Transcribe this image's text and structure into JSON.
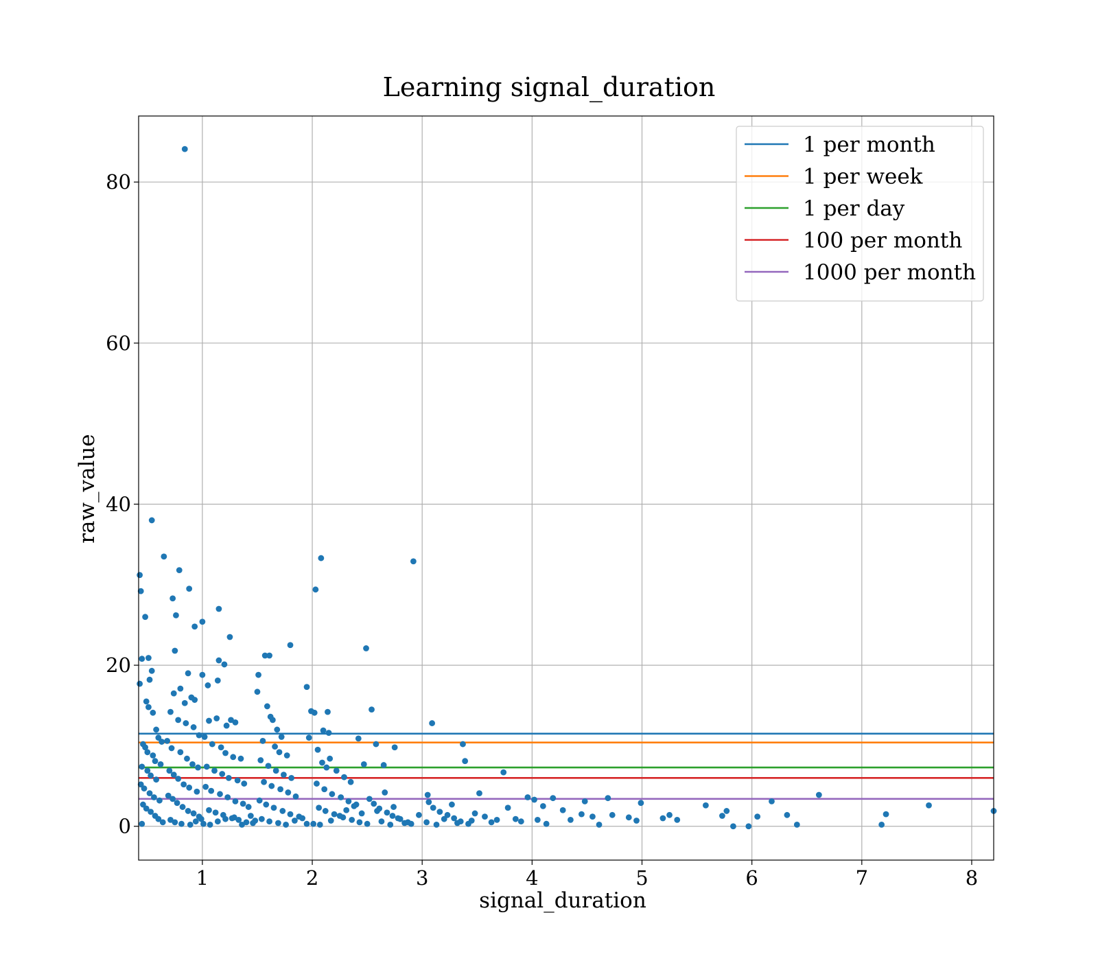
{
  "chart_data": {
    "type": "scatter",
    "title": "Learning signal_duration",
    "xlabel": "signal_duration",
    "ylabel": "raw_value",
    "xlim": [
      0.42,
      8.2
    ],
    "ylim": [
      -4.2,
      88.2
    ],
    "x_ticks": [
      1,
      2,
      3,
      4,
      5,
      6,
      7,
      8
    ],
    "y_ticks": [
      0,
      20,
      40,
      60,
      80
    ],
    "grid": true,
    "legend_position": "top-right",
    "point_color": "#1f77b4",
    "points": [
      [
        0.84,
        84.1
      ],
      [
        0.54,
        38.0
      ],
      [
        0.65,
        33.5
      ],
      [
        0.43,
        31.2
      ],
      [
        0.44,
        29.2
      ],
      [
        0.73,
        28.3
      ],
      [
        0.48,
        26.0
      ],
      [
        0.45,
        20.8
      ],
      [
        0.51,
        20.9
      ],
      [
        0.52,
        18.2
      ],
      [
        0.54,
        19.3
      ],
      [
        0.43,
        17.7
      ],
      [
        0.49,
        15.5
      ],
      [
        0.51,
        14.8
      ],
      [
        0.55,
        14.1
      ],
      [
        0.58,
        12.0
      ],
      [
        0.6,
        11.0
      ],
      [
        0.63,
        10.5
      ],
      [
        0.46,
        10.2
      ],
      [
        0.48,
        9.8
      ],
      [
        0.5,
        9.2
      ],
      [
        0.55,
        8.8
      ],
      [
        0.57,
        8.1
      ],
      [
        0.62,
        7.7
      ],
      [
        0.45,
        7.4
      ],
      [
        0.5,
        6.9
      ],
      [
        0.53,
        6.3
      ],
      [
        0.58,
        5.8
      ],
      [
        0.44,
        5.2
      ],
      [
        0.47,
        4.7
      ],
      [
        0.52,
        4.1
      ],
      [
        0.56,
        3.6
      ],
      [
        0.61,
        3.2
      ],
      [
        0.46,
        2.7
      ],
      [
        0.49,
        2.2
      ],
      [
        0.53,
        1.8
      ],
      [
        0.57,
        1.3
      ],
      [
        0.6,
        0.9
      ],
      [
        0.64,
        0.5
      ],
      [
        0.45,
        0.3
      ],
      [
        0.79,
        31.8
      ],
      [
        0.88,
        29.5
      ],
      [
        0.76,
        26.2
      ],
      [
        0.93,
        24.8
      ],
      [
        0.75,
        21.8
      ],
      [
        0.87,
        19.0
      ],
      [
        0.8,
        17.1
      ],
      [
        0.74,
        16.5
      ],
      [
        0.84,
        15.3
      ],
      [
        0.9,
        16.0
      ],
      [
        0.93,
        15.7
      ],
      [
        0.71,
        14.2
      ],
      [
        0.78,
        13.2
      ],
      [
        0.85,
        12.8
      ],
      [
        0.92,
        12.3
      ],
      [
        0.97,
        11.3
      ],
      [
        0.68,
        10.6
      ],
      [
        0.72,
        9.7
      ],
      [
        0.8,
        9.2
      ],
      [
        0.86,
        8.4
      ],
      [
        0.91,
        7.7
      ],
      [
        0.96,
        7.3
      ],
      [
        0.7,
        6.9
      ],
      [
        0.74,
        6.4
      ],
      [
        0.78,
        5.9
      ],
      [
        0.83,
        5.2
      ],
      [
        0.88,
        4.8
      ],
      [
        0.95,
        4.3
      ],
      [
        0.69,
        3.8
      ],
      [
        0.73,
        3.4
      ],
      [
        0.77,
        2.9
      ],
      [
        0.82,
        2.4
      ],
      [
        0.87,
        1.9
      ],
      [
        0.92,
        1.6
      ],
      [
        0.97,
        1.2
      ],
      [
        0.71,
        0.8
      ],
      [
        0.75,
        0.5
      ],
      [
        0.81,
        0.3
      ],
      [
        0.89,
        0.2
      ],
      [
        0.94,
        0.6
      ],
      [
        0.99,
        0.9
      ],
      [
        1.0,
        25.4
      ],
      [
        1.15,
        27.0
      ],
      [
        1.25,
        23.5
      ],
      [
        1.15,
        20.6
      ],
      [
        1.2,
        20.1
      ],
      [
        1.05,
        17.5
      ],
      [
        1.0,
        18.8
      ],
      [
        1.14,
        18.1
      ],
      [
        1.06,
        13.1
      ],
      [
        1.13,
        13.4
      ],
      [
        1.22,
        12.5
      ],
      [
        1.26,
        13.2
      ],
      [
        1.3,
        12.9
      ],
      [
        1.02,
        11.1
      ],
      [
        1.09,
        10.2
      ],
      [
        1.17,
        9.8
      ],
      [
        1.21,
        9.1
      ],
      [
        1.28,
        8.6
      ],
      [
        1.35,
        8.4
      ],
      [
        1.04,
        7.4
      ],
      [
        1.11,
        6.9
      ],
      [
        1.18,
        6.5
      ],
      [
        1.24,
        6.0
      ],
      [
        1.32,
        5.7
      ],
      [
        1.38,
        5.3
      ],
      [
        1.03,
        4.9
      ],
      [
        1.08,
        4.4
      ],
      [
        1.16,
        4.0
      ],
      [
        1.23,
        3.6
      ],
      [
        1.3,
        3.1
      ],
      [
        1.37,
        2.8
      ],
      [
        1.42,
        2.4
      ],
      [
        1.06,
        2.0
      ],
      [
        1.12,
        1.7
      ],
      [
        1.19,
        1.4
      ],
      [
        1.27,
        1.0
      ],
      [
        1.33,
        0.8
      ],
      [
        1.4,
        0.5
      ],
      [
        1.46,
        0.4
      ],
      [
        1.01,
        0.3
      ],
      [
        1.07,
        0.2
      ],
      [
        1.14,
        0.6
      ],
      [
        1.21,
        0.9
      ],
      [
        1.29,
        1.1
      ],
      [
        1.36,
        0.2
      ],
      [
        1.44,
        1.3
      ],
      [
        1.48,
        0.7
      ],
      [
        1.57,
        21.2
      ],
      [
        1.61,
        21.2
      ],
      [
        1.51,
        18.8
      ],
      [
        1.5,
        16.7
      ],
      [
        1.59,
        14.9
      ],
      [
        1.64,
        13.2
      ],
      [
        1.62,
        13.6
      ],
      [
        1.68,
        12.0
      ],
      [
        1.72,
        11.1
      ],
      [
        1.55,
        10.6
      ],
      [
        1.66,
        9.9
      ],
      [
        1.7,
        9.2
      ],
      [
        1.77,
        8.8
      ],
      [
        1.53,
        8.2
      ],
      [
        1.6,
        7.5
      ],
      [
        1.67,
        6.9
      ],
      [
        1.74,
        6.4
      ],
      [
        1.81,
        6.0
      ],
      [
        1.56,
        5.5
      ],
      [
        1.63,
        5.0
      ],
      [
        1.71,
        4.6
      ],
      [
        1.78,
        4.2
      ],
      [
        1.85,
        3.7
      ],
      [
        1.52,
        3.2
      ],
      [
        1.58,
        2.7
      ],
      [
        1.65,
        2.3
      ],
      [
        1.73,
        1.9
      ],
      [
        1.8,
        1.5
      ],
      [
        1.88,
        1.2
      ],
      [
        1.54,
        0.9
      ],
      [
        1.61,
        0.6
      ],
      [
        1.69,
        0.4
      ],
      [
        1.76,
        0.2
      ],
      [
        1.84,
        0.7
      ],
      [
        1.91,
        1.0
      ],
      [
        1.95,
        0.3
      ],
      [
        1.8,
        22.5
      ],
      [
        1.95,
        17.3
      ],
      [
        2.08,
        33.3
      ],
      [
        2.03,
        29.4
      ],
      [
        1.99,
        14.3
      ],
      [
        2.02,
        14.1
      ],
      [
        2.14,
        14.2
      ],
      [
        1.97,
        11.0
      ],
      [
        2.1,
        11.9
      ],
      [
        2.15,
        11.6
      ],
      [
        2.05,
        9.5
      ],
      [
        2.16,
        8.4
      ],
      [
        2.09,
        7.9
      ],
      [
        2.13,
        7.3
      ],
      [
        2.22,
        6.9
      ],
      [
        2.29,
        6.1
      ],
      [
        2.35,
        5.5
      ],
      [
        2.04,
        5.3
      ],
      [
        2.11,
        4.6
      ],
      [
        2.18,
        4.0
      ],
      [
        2.26,
        3.6
      ],
      [
        2.33,
        3.1
      ],
      [
        2.4,
        2.7
      ],
      [
        2.06,
        2.3
      ],
      [
        2.12,
        1.9
      ],
      [
        2.2,
        1.5
      ],
      [
        2.28,
        1.1
      ],
      [
        2.36,
        0.8
      ],
      [
        2.43,
        0.5
      ],
      [
        2.01,
        0.3
      ],
      [
        2.07,
        0.2
      ],
      [
        2.17,
        0.7
      ],
      [
        2.25,
        1.3
      ],
      [
        2.31,
        2.0
      ],
      [
        2.38,
        2.5
      ],
      [
        2.45,
        1.6
      ],
      [
        2.49,
        22.1
      ],
      [
        2.54,
        14.5
      ],
      [
        2.42,
        10.9
      ],
      [
        2.58,
        10.2
      ],
      [
        2.47,
        7.7
      ],
      [
        2.65,
        7.6
      ],
      [
        2.75,
        9.8
      ],
      [
        2.92,
        32.9
      ],
      [
        2.52,
        3.4
      ],
      [
        2.56,
        2.8
      ],
      [
        2.61,
        2.2
      ],
      [
        2.68,
        1.7
      ],
      [
        2.73,
        1.3
      ],
      [
        2.8,
        0.9
      ],
      [
        2.87,
        0.5
      ],
      [
        2.5,
        0.3
      ],
      [
        2.63,
        0.6
      ],
      [
        2.71,
        0.2
      ],
      [
        2.78,
        1.0
      ],
      [
        2.84,
        0.4
      ],
      [
        2.9,
        0.3
      ],
      [
        2.97,
        1.4
      ],
      [
        2.59,
        1.9
      ],
      [
        2.66,
        4.2
      ],
      [
        2.74,
        2.4
      ],
      [
        3.09,
        12.8
      ],
      [
        3.37,
        10.2
      ],
      [
        3.39,
        8.1
      ],
      [
        3.05,
        3.9
      ],
      [
        3.06,
        3.0
      ],
      [
        3.1,
        2.3
      ],
      [
        3.16,
        1.8
      ],
      [
        3.23,
        1.4
      ],
      [
        3.29,
        1.0
      ],
      [
        3.35,
        0.6
      ],
      [
        3.42,
        0.3
      ],
      [
        3.48,
        1.6
      ],
      [
        3.04,
        0.5
      ],
      [
        3.13,
        0.2
      ],
      [
        3.2,
        0.9
      ],
      [
        3.27,
        2.7
      ],
      [
        3.32,
        0.4
      ],
      [
        3.45,
        0.7
      ],
      [
        3.52,
        4.1
      ],
      [
        3.57,
        1.2
      ],
      [
        3.63,
        0.5
      ],
      [
        3.68,
        0.8
      ],
      [
        3.74,
        6.7
      ],
      [
        3.78,
        2.3
      ],
      [
        3.85,
        0.9
      ],
      [
        3.9,
        0.6
      ],
      [
        3.96,
        3.6
      ],
      [
        4.02,
        3.3
      ],
      [
        4.05,
        0.8
      ],
      [
        4.1,
        2.5
      ],
      [
        4.13,
        0.3
      ],
      [
        4.19,
        3.5
      ],
      [
        4.28,
        2.0
      ],
      [
        4.35,
        0.8
      ],
      [
        4.45,
        1.5
      ],
      [
        4.48,
        3.1
      ],
      [
        4.55,
        1.2
      ],
      [
        4.61,
        0.2
      ],
      [
        4.69,
        3.5
      ],
      [
        4.73,
        1.4
      ],
      [
        4.88,
        1.1
      ],
      [
        4.95,
        0.7
      ],
      [
        4.99,
        2.9
      ],
      [
        5.19,
        1.0
      ],
      [
        5.25,
        1.4
      ],
      [
        5.32,
        0.8
      ],
      [
        5.58,
        2.6
      ],
      [
        5.73,
        1.3
      ],
      [
        5.77,
        1.9
      ],
      [
        5.83,
        0.0
      ],
      [
        5.97,
        0.0
      ],
      [
        6.05,
        1.2
      ],
      [
        6.18,
        3.1
      ],
      [
        6.32,
        1.4
      ],
      [
        6.41,
        0.2
      ],
      [
        6.61,
        3.9
      ],
      [
        7.18,
        0.2
      ],
      [
        7.22,
        1.5
      ],
      [
        7.61,
        2.6
      ],
      [
        8.2,
        1.9
      ]
    ],
    "hlines": [
      {
        "label": "1 per month",
        "y": 11.5,
        "color": "#1f77b4"
      },
      {
        "label": "1 per week",
        "y": 10.4,
        "color": "#ff7f0e"
      },
      {
        "label": "1 per day",
        "y": 7.3,
        "color": "#2ca02c"
      },
      {
        "label": "100 per month",
        "y": 6.0,
        "color": "#d62728"
      },
      {
        "label": "1000 per month",
        "y": 3.4,
        "color": "#9467bd"
      }
    ]
  }
}
